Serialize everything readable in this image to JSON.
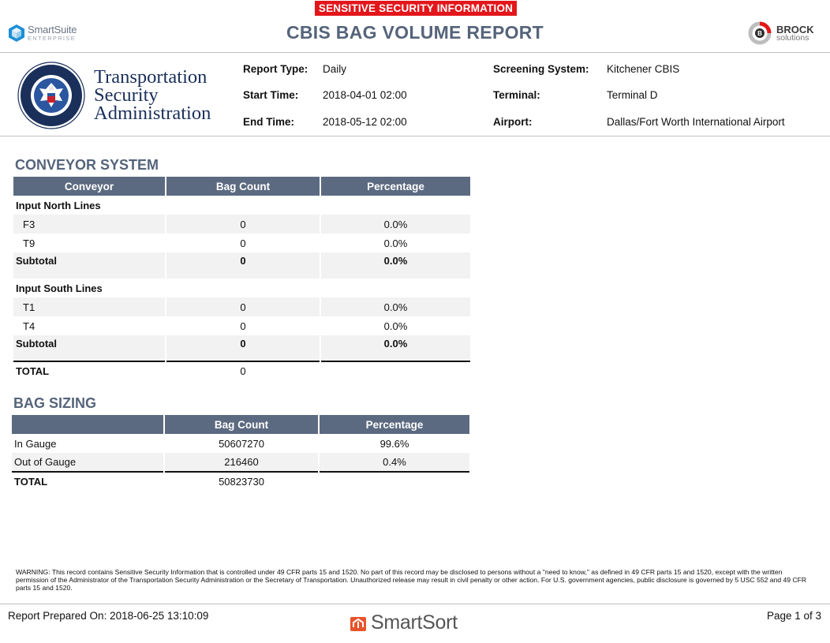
{
  "header": {
    "banner": "SENSITIVE SECURITY INFORMATION",
    "title": "CBIS BAG VOLUME REPORT",
    "left_logo": {
      "name": "SmartSuite",
      "sub": "ENTERPRISE"
    },
    "right_logo": {
      "name": "BROCK",
      "sub": "solutions"
    }
  },
  "tsa": {
    "line1": "Transportation",
    "line2": "Security",
    "line3": "Administration"
  },
  "meta": {
    "report_type_label": "Report Type:",
    "report_type": "Daily",
    "start_time_label": "Start Time:",
    "start_time": "2018-04-01 02:00",
    "end_time_label": "End Time:",
    "end_time": "2018-05-12 02:00",
    "screening_system_label": "Screening System:",
    "screening_system": "Kitchener CBIS",
    "terminal_label": "Terminal:",
    "terminal": "Terminal D",
    "airport_label": "Airport:",
    "airport": "Dallas/Fort Worth International Airport"
  },
  "conveyor": {
    "title": "CONVEYOR SYSTEM",
    "headers": [
      "Conveyor",
      "Bag Count",
      "Percentage"
    ],
    "groups": [
      {
        "name": "Input North Lines",
        "rows": [
          {
            "name": "F3",
            "count": "0",
            "pct": "0.0%"
          },
          {
            "name": "T9",
            "count": "0",
            "pct": "0.0%"
          }
        ],
        "subtotal": {
          "label": "Subtotal",
          "count": "0",
          "pct": "0.0%"
        }
      },
      {
        "name": "Input South Lines",
        "rows": [
          {
            "name": "T1",
            "count": "0",
            "pct": "0.0%"
          },
          {
            "name": "T4",
            "count": "0",
            "pct": "0.0%"
          }
        ],
        "subtotal": {
          "label": "Subtotal",
          "count": "0",
          "pct": "0.0%"
        }
      }
    ],
    "total": {
      "label": "TOTAL",
      "count": "0"
    }
  },
  "bag_sizing": {
    "title": "BAG SIZING",
    "headers": [
      "",
      "Bag Count",
      "Percentage"
    ],
    "rows": [
      {
        "name": "In Gauge",
        "count": "50607270",
        "pct": "99.6%"
      },
      {
        "name": "Out of Gauge",
        "count": "216460",
        "pct": "0.4%"
      }
    ],
    "total": {
      "label": "TOTAL",
      "count": "50823730"
    }
  },
  "footer": {
    "warning": "WARNING: This record contains Sensitive Security Information that is controlled under 49 CFR parts 15 and 1520. No part of this record may be disclosed to persons without a \"need to know,\" as defined in 49 CFR parts 15 and 1520, except with the written permission of the Administrator of the Transportation Security Administration or the Secretary of Transportation. Unauthorized release may result in civil penalty or other action. For U.S. government agencies, public disclosure is governed by 5 USC 552 and 49 CFR parts 15 and 1520.",
    "prepared": "Report Prepared On: 2018-06-25 13:10:09",
    "brand": "SmartSort",
    "page": "Page 1 of 3"
  },
  "colors": {
    "banner": "#e3161b",
    "title": "#55647a",
    "table_header": "#5b6a80",
    "row_grey": "#f2f2f2",
    "tsa_blue": "#1a2f5a"
  }
}
